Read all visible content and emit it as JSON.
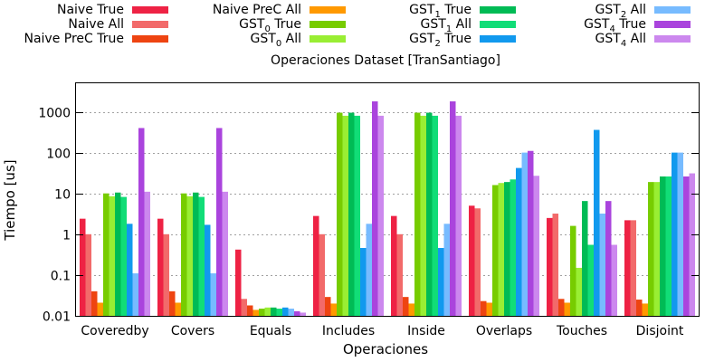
{
  "chart_data": {
    "type": "bar",
    "title": "Operaciones Dataset [TranSantiago]",
    "xlabel": "Operaciones",
    "ylabel": "Tiempo [us]",
    "yscale": "log",
    "ylim": [
      0.01,
      5000
    ],
    "yticks": [
      {
        "value": 0.01,
        "label": "0.01"
      },
      {
        "value": 0.1,
        "label": "0.1"
      },
      {
        "value": 1,
        "label": "1"
      },
      {
        "value": 10,
        "label": "10"
      },
      {
        "value": 100,
        "label": "100"
      },
      {
        "value": 1000,
        "label": "1000"
      }
    ],
    "grid": true,
    "legend_position": "top",
    "categories": [
      "Coveredby",
      "Covers",
      "Equals",
      "Includes",
      "Inside",
      "Overlaps",
      "Touches",
      "Disjoint"
    ],
    "series": [
      {
        "name": "Naive True",
        "sub": "",
        "rest": "",
        "color": "#ee2244",
        "values": [
          2.4,
          2.4,
          0.42,
          2.8,
          2.8,
          5.0,
          2.5,
          2.2
        ]
      },
      {
        "name": "Naive All",
        "sub": "",
        "rest": "",
        "color": "#f26a6a",
        "values": [
          1.0,
          1.0,
          0.026,
          1.0,
          1.0,
          4.3,
          3.2,
          2.2
        ]
      },
      {
        "name": "Naive PreC True",
        "sub": "",
        "rest": "",
        "color": "#ee4411",
        "values": [
          0.04,
          0.04,
          0.018,
          0.029,
          0.029,
          0.023,
          0.026,
          0.025
        ]
      },
      {
        "name": "Naive PreC All",
        "sub": "",
        "rest": "",
        "color": "#ff9900",
        "values": [
          0.021,
          0.021,
          0.014,
          0.02,
          0.02,
          0.021,
          0.021,
          0.02
        ]
      },
      {
        "name": "GST",
        "sub": "0",
        "rest": " True",
        "color": "#77cc00",
        "values": [
          10,
          10,
          0.015,
          950,
          950,
          16,
          1.6,
          19
        ]
      },
      {
        "name": "GST",
        "sub": "0",
        "rest": " All",
        "color": "#99ee33",
        "values": [
          8.5,
          8.5,
          0.016,
          800,
          800,
          18,
          0.15,
          19
        ]
      },
      {
        "name": "GST",
        "sub": "1",
        "rest": " True",
        "color": "#00bb55",
        "values": [
          10.5,
          10.5,
          0.016,
          950,
          950,
          19,
          6.5,
          26
        ]
      },
      {
        "name": "GST",
        "sub": "1",
        "rest": " All",
        "color": "#11dd77",
        "values": [
          8.2,
          8.2,
          0.015,
          800,
          800,
          22,
          0.55,
          26
        ]
      },
      {
        "name": "GST",
        "sub": "2",
        "rest": " True",
        "color": "#1199ee",
        "values": [
          1.8,
          1.7,
          0.016,
          0.46,
          0.46,
          42,
          360,
          100
        ]
      },
      {
        "name": "GST",
        "sub": "2",
        "rest": " All",
        "color": "#77bbff",
        "values": [
          0.11,
          0.11,
          0.015,
          1.8,
          1.8,
          100,
          3.2,
          100
        ]
      },
      {
        "name": "GST",
        "sub": "4",
        "rest": " True",
        "color": "#aa44dd",
        "values": [
          400,
          400,
          0.013,
          1800,
          1800,
          110,
          6.5,
          26
        ]
      },
      {
        "name": "GST",
        "sub": "4",
        "rest": " All",
        "color": "#cc88ee",
        "values": [
          11,
          11,
          0.012,
          800,
          800,
          27,
          0.55,
          31
        ]
      }
    ]
  }
}
